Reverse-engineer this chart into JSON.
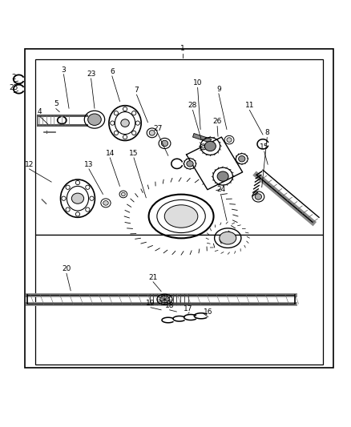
{
  "background_color": "#ffffff",
  "border_color": "#000000",
  "line_color": "#000000",
  "part_color": "#555555",
  "gear_color": "#444444",
  "figsize": [
    4.39,
    5.33
  ],
  "dpi": 100
}
